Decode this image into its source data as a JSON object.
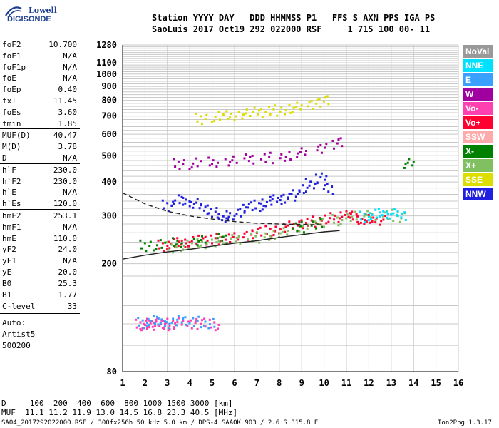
{
  "logo": {
    "line1": "Lowell",
    "line2": "DIGISONDE",
    "color": "#1e3f8f"
  },
  "header": {
    "line1": "Station YYYY DAY   DDD HHMMSS P1   FFS S AXN PPS IGA PS",
    "line2": "SaoLuis 2017 Oct19 292 022000 RSF     1 715 100 00- 11"
  },
  "params": [
    {
      "name": "foF2",
      "value": "10.700"
    },
    {
      "name": "foF1",
      "value": "N/A"
    },
    {
      "name": "foF1p",
      "value": "N/A"
    },
    {
      "name": "foE",
      "value": "N/A"
    },
    {
      "name": "foEp",
      "value": "0.40"
    },
    {
      "name": "fxI",
      "value": "11.45"
    },
    {
      "name": "foEs",
      "value": "3.60"
    },
    {
      "name": "fmin",
      "value": "1.85"
    },
    {
      "name": "MUF(D)",
      "value": "40.47"
    },
    {
      "name": "M(D)",
      "value": "3.78"
    },
    {
      "name": "D",
      "value": "N/A"
    },
    {
      "name": "h`F",
      "value": "230.0"
    },
    {
      "name": "h`F2",
      "value": "230.0"
    },
    {
      "name": "h`E",
      "value": "N/A"
    },
    {
      "name": "h`Es",
      "value": "120.0"
    },
    {
      "name": "hmF2",
      "value": "253.1"
    },
    {
      "name": "hmF1",
      "value": "N/A"
    },
    {
      "name": "hmE",
      "value": "110.0"
    },
    {
      "name": "yF2",
      "value": "24.0"
    },
    {
      "name": "yF1",
      "value": "N/A"
    },
    {
      "name": "yE",
      "value": "20.0"
    },
    {
      "name": "B0",
      "value": "25.3"
    },
    {
      "name": "B1",
      "value": "1.77"
    },
    {
      "name": "C-level",
      "value": "33"
    }
  ],
  "autoscaling": {
    "line1": "Auto:",
    "line2": "Artist5",
    "line3": "500200"
  },
  "legend": [
    {
      "label": "NoVal",
      "bg": "#999999",
      "fg": "#ffffff"
    },
    {
      "label": "NNE",
      "bg": "#00e0ff",
      "fg": "#ffffff"
    },
    {
      "label": "E",
      "bg": "#3aa0ff",
      "fg": "#ffffff"
    },
    {
      "label": "W",
      "bg": "#a000a0",
      "fg": "#ffffff"
    },
    {
      "label": "Vo-",
      "bg": "#ff40b0",
      "fg": "#ffffff"
    },
    {
      "label": "Vo+",
      "bg": "#ff0030",
      "fg": "#ffffff"
    },
    {
      "label": "SSW",
      "bg": "#ffaaaa",
      "fg": "#ffffff"
    },
    {
      "label": "X-",
      "bg": "#008000",
      "fg": "#ffffff"
    },
    {
      "label": "X+",
      "bg": "#80c060",
      "fg": "#ffffff"
    },
    {
      "label": "SSE",
      "bg": "#dddd00",
      "fg": "#ffffff"
    },
    {
      "label": "NNW",
      "bg": "#2020e0",
      "fg": "#ffffff"
    }
  ],
  "footer": {
    "d_row": "D     100  200  400  600  800 1000 1500 3000 [km]",
    "muf_row": "MUF  11.1 11.2 11.9 13.0 14.5 16.8 23.3 40.5 [MHz]",
    "file_line": "SAO4_2017292022000.RSF / 300fx256h 50 kHz 5.0 km / DPS-4 SAAOK 903 / 2.6 S 315.8 E",
    "version": "Ion2Png 1.3.17"
  },
  "chart_data": {
    "type": "scatter",
    "title": "",
    "xlabel": "",
    "ylabel": "",
    "xlim": [
      1,
      16
    ],
    "ylim": [
      80,
      1280
    ],
    "x_ticks": [
      1,
      2,
      3,
      4,
      5,
      6,
      7,
      8,
      9,
      10,
      11,
      12,
      13,
      14,
      15,
      16
    ],
    "y_ticks": [
      80,
      200,
      300,
      400,
      500,
      600,
      700,
      800,
      900,
      1000,
      1100,
      1280
    ],
    "y_scale": "logarithmic (virtual height, km)",
    "grid": true,
    "series": [
      {
        "name": "Vo+",
        "color": "#ff0030",
        "x": [
          2.8,
          3.2,
          3.6,
          4.0,
          4.5,
          5.0,
          5.5,
          6.0,
          6.5,
          7.0,
          7.5,
          8.0,
          8.5,
          9.0,
          9.5,
          10.0,
          10.5,
          10.9,
          11.3,
          11.6,
          12.0,
          12.4
        ],
        "y": [
          235,
          238,
          240,
          242,
          245,
          248,
          250,
          253,
          258,
          262,
          266,
          270,
          276,
          282,
          288,
          294,
          300,
          305,
          300,
          295,
          292,
          290
        ]
      },
      {
        "name": "X+",
        "color": "#80c060",
        "x": [
          3.2,
          3.8,
          4.5,
          5.2,
          6.0,
          6.8,
          7.5,
          8.2,
          9.0,
          9.8,
          10.5,
          11.2,
          12.0,
          12.8,
          13.3
        ],
        "y": [
          232,
          235,
          238,
          242,
          246,
          252,
          258,
          264,
          272,
          282,
          292,
          300,
          302,
          305,
          300
        ]
      },
      {
        "name": "NNW",
        "color": "#2020e0",
        "x": [
          3.0,
          3.4,
          3.8,
          4.2,
          4.6,
          5.0,
          5.4,
          5.8,
          6.2,
          6.6,
          7.0,
          7.4,
          7.8,
          8.2,
          8.6,
          9.0,
          9.4,
          9.8,
          10.2
        ],
        "y": [
          330,
          345,
          340,
          335,
          320,
          310,
          305,
          300,
          315,
          325,
          330,
          340,
          345,
          350,
          360,
          380,
          400,
          420,
          380
        ]
      },
      {
        "name": "W",
        "color": "#a000a0",
        "x": [
          3.5,
          4.2,
          5.0,
          5.8,
          6.6,
          7.4,
          8.2,
          9.0,
          9.8,
          10.6
        ],
        "y": [
          470,
          472,
          475,
          480,
          488,
          495,
          505,
          520,
          540,
          560
        ]
      },
      {
        "name": "SSE",
        "color": "#dddd00",
        "x": [
          4.5,
          5.2,
          5.8,
          6.4,
          7.0,
          7.6,
          8.2,
          8.8,
          9.4,
          10.0
        ],
        "y": [
          690,
          700,
          705,
          715,
          725,
          740,
          750,
          765,
          785,
          800
        ]
      },
      {
        "name": "NNE",
        "color": "#00e0ff",
        "x": [
          11.8,
          12.2,
          12.6,
          13.0,
          13.4
        ],
        "y": [
          300,
          305,
          308,
          306,
          302
        ]
      },
      {
        "name": "Vo-",
        "color": "#ff40b0",
        "x": [
          1.8,
          2.0,
          2.2,
          2.4,
          2.6,
          2.8,
          3.0,
          3.5,
          4.0,
          4.5,
          5.0
        ],
        "y": [
          120,
          121,
          119,
          122,
          120,
          121,
          120,
          123,
          122,
          121,
          120
        ]
      },
      {
        "name": "E",
        "color": "#3aa0ff",
        "x": [
          1.9,
          2.3,
          2.7,
          3.1,
          3.6,
          4.2,
          4.8
        ],
        "y": [
          122,
          124,
          123,
          121,
          124,
          123,
          122
        ]
      },
      {
        "name": "X-",
        "color": "#008000",
        "x": [
          2.0,
          2.6,
          3.4,
          4.4,
          5.4,
          8.8,
          9.6,
          13.8
        ],
        "y": [
          235,
          236,
          240,
          244,
          248,
          275,
          285,
          475
        ]
      }
    ],
    "traces": [
      {
        "label": "O-trace profile",
        "style": "solid",
        "x": [
          1,
          2,
          3,
          4,
          5,
          6,
          7,
          8,
          9,
          10,
          10.5,
          10.7
        ],
        "y": [
          208,
          215,
          221,
          226,
          232,
          238,
          243,
          250,
          256,
          262,
          264,
          265
        ]
      },
      {
        "label": "MUF profile",
        "style": "dashed",
        "x": [
          1,
          2,
          3,
          4,
          5,
          6,
          7,
          8,
          9,
          10
        ],
        "y": [
          365,
          332,
          312,
          300,
          292,
          286,
          282,
          280,
          279,
          278
        ]
      }
    ]
  }
}
